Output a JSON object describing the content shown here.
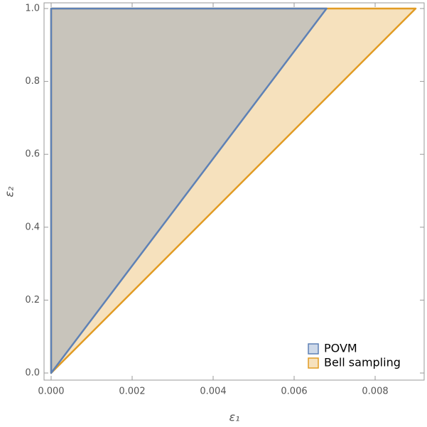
{
  "chart_data": {
    "type": "polygon",
    "xlabel": "ε₁",
    "ylabel": "ε₂",
    "series": [
      {
        "name": "Bell sampling",
        "color": "#e19c24",
        "x": [
          0,
          0,
          0.009
        ],
        "y": [
          0,
          1,
          1
        ]
      },
      {
        "name": "POVM",
        "color": "#5e81b5",
        "x": [
          0,
          0,
          0.0068
        ],
        "y": [
          0,
          1,
          1
        ]
      }
    ],
    "xlim": [
      -0.000175,
      0.00921
    ],
    "ylim": [
      -0.0195,
      1.0156
    ],
    "xticks": [
      {
        "value": 0,
        "label": "0.000"
      },
      {
        "value": 0.002,
        "label": "0.002"
      },
      {
        "value": 0.004,
        "label": "0.004"
      },
      {
        "value": 0.006,
        "label": "0.006"
      },
      {
        "value": 0.008,
        "label": "0.008"
      }
    ],
    "yticks": [
      {
        "value": 0,
        "label": "0.0"
      },
      {
        "value": 0.2,
        "label": "0.2"
      },
      {
        "value": 0.4,
        "label": "0.4"
      },
      {
        "value": 0.6,
        "label": "0.6"
      },
      {
        "value": 0.8,
        "label": "0.8"
      },
      {
        "value": 1,
        "label": "1.0"
      }
    ],
    "legend": "bottom-right",
    "legend_order": [
      1,
      0
    ],
    "grid": false
  }
}
